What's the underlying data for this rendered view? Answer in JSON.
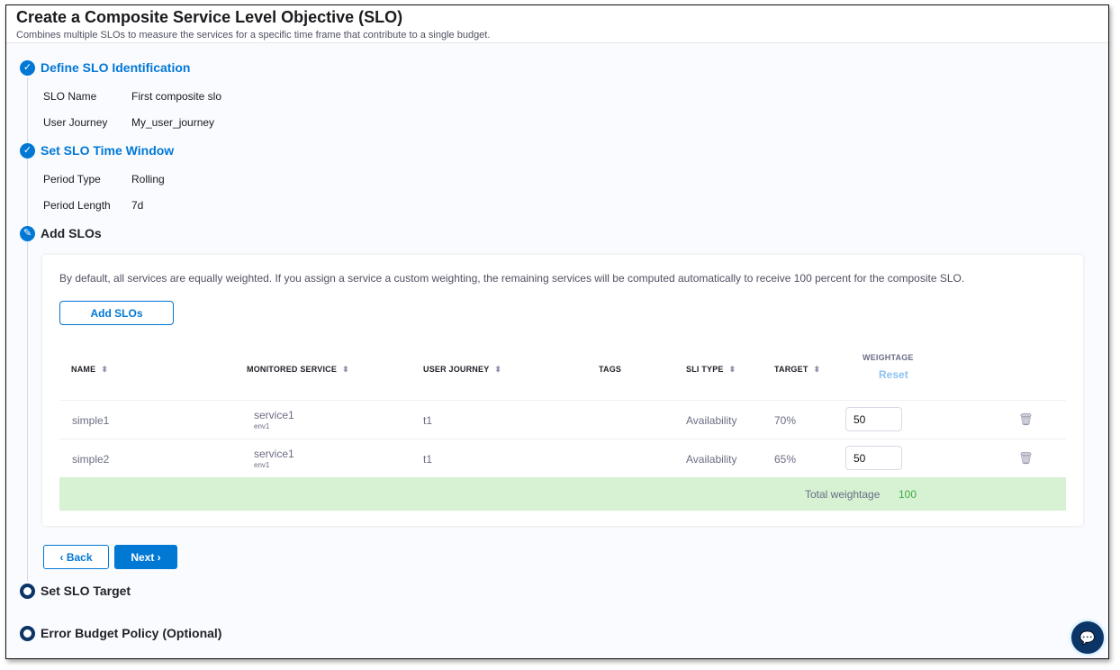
{
  "header": {
    "title": "Create a Composite Service Level Objective (SLO)",
    "subtitle": "Combines multiple SLOs to measure the services for a specific time frame that contribute to a single budget."
  },
  "steps": [
    {
      "label": "Define SLO Identification",
      "status": "done",
      "fields": [
        {
          "k": "SLO Name",
          "v": "First composite slo"
        },
        {
          "k": "User Journey",
          "v": "My_user_journey"
        }
      ]
    },
    {
      "label": "Set SLO Time Window",
      "status": "done",
      "fields": [
        {
          "k": "Period Type",
          "v": "Rolling"
        },
        {
          "k": "Period Length",
          "v": "7d"
        }
      ]
    },
    {
      "label": "Add SLOs",
      "status": "editing"
    },
    {
      "label": "Set SLO Target",
      "status": "pending"
    },
    {
      "label": "Error Budget Policy (Optional)",
      "status": "pending"
    }
  ],
  "add_slos": {
    "info": "By default, all services are equally weighted. If you assign a service a custom weighting, the remaining services will be computed automatically to receive 100 percent for the composite SLO.",
    "add_button": "Add SLOs",
    "columns": {
      "name": "NAME",
      "service": "MONITORED SERVICE",
      "journey": "USER JOURNEY",
      "tags": "TAGS",
      "sli": "SLI TYPE",
      "target": "TARGET",
      "weightage": "WEIGHTAGE",
      "reset": "Reset"
    },
    "rows": [
      {
        "name": "simple1",
        "service": "service1",
        "env": "env1",
        "journey": "t1",
        "tags": "",
        "sli": "Availability",
        "target": "70%",
        "weight": "50"
      },
      {
        "name": "simple2",
        "service": "service1",
        "env": "env1",
        "journey": "t1",
        "tags": "",
        "sli": "Availability",
        "target": "65%",
        "weight": "50"
      }
    ],
    "total_label": "Total weightage",
    "total_value": "100"
  },
  "nav": {
    "back": "Back",
    "next": "Next"
  },
  "colors": {
    "accent": "#0278d5",
    "success_bg": "#d6f2d2",
    "success_text": "#42ab45",
    "step_pending": "#0b3467"
  }
}
